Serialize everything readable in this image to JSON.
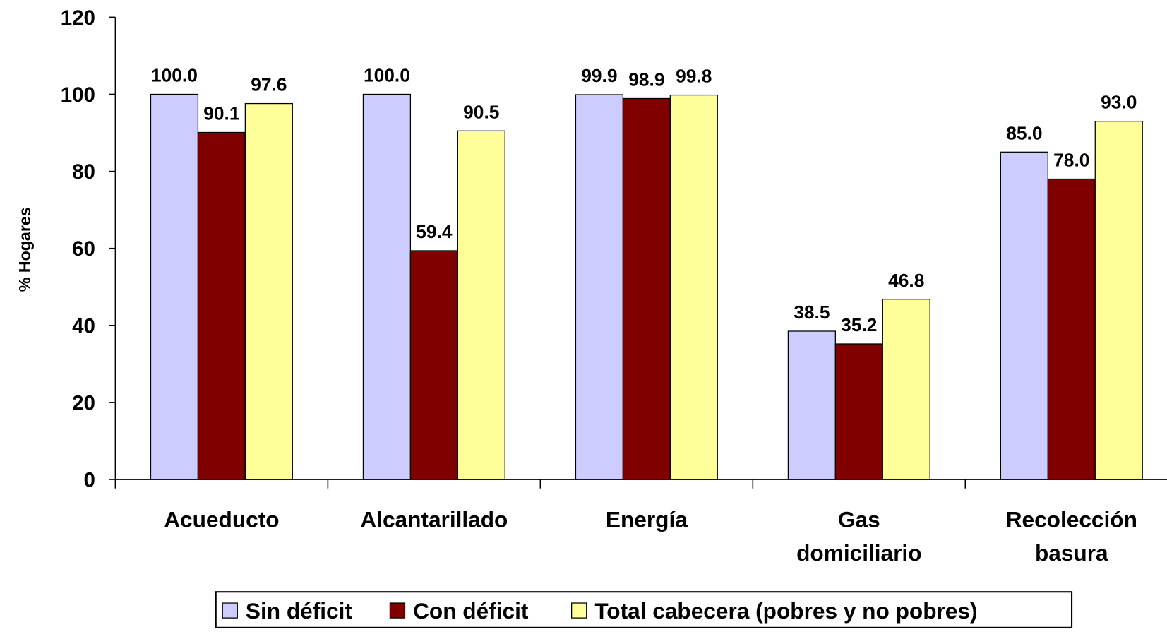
{
  "chart_data": {
    "type": "bar",
    "y_label": "% Hogares",
    "categories": [
      [
        "Acueducto"
      ],
      [
        "Alcantarillado"
      ],
      [
        "Energía"
      ],
      [
        "Gas",
        "domiciliario"
      ],
      [
        "Recolección",
        "basura"
      ]
    ],
    "series": [
      {
        "name": "Sin déficit",
        "color": "#ccccff",
        "values": [
          100.0,
          100.0,
          99.9,
          38.5,
          85.0
        ],
        "value_labels": [
          "100.0",
          "100.0",
          "99.9",
          "38.5",
          "85.0"
        ]
      },
      {
        "name": "Con déficit",
        "color": "#800000",
        "values": [
          90.1,
          59.4,
          98.9,
          35.2,
          78.0
        ],
        "value_labels": [
          "90.1",
          "59.4",
          "98.9",
          "35.2",
          "78.0"
        ]
      },
      {
        "name": "Total cabecera (pobres y no pobres)",
        "color": "#ffff99",
        "values": [
          97.6,
          90.5,
          99.8,
          46.8,
          93.0
        ],
        "value_labels": [
          "97.6",
          "90.5",
          "99.8",
          "46.8",
          "93.0"
        ]
      }
    ],
    "ylim": [
      0,
      120
    ],
    "yticks": [
      0,
      20,
      40,
      60,
      80,
      100,
      120
    ],
    "grid": false,
    "legend": "bottom"
  }
}
